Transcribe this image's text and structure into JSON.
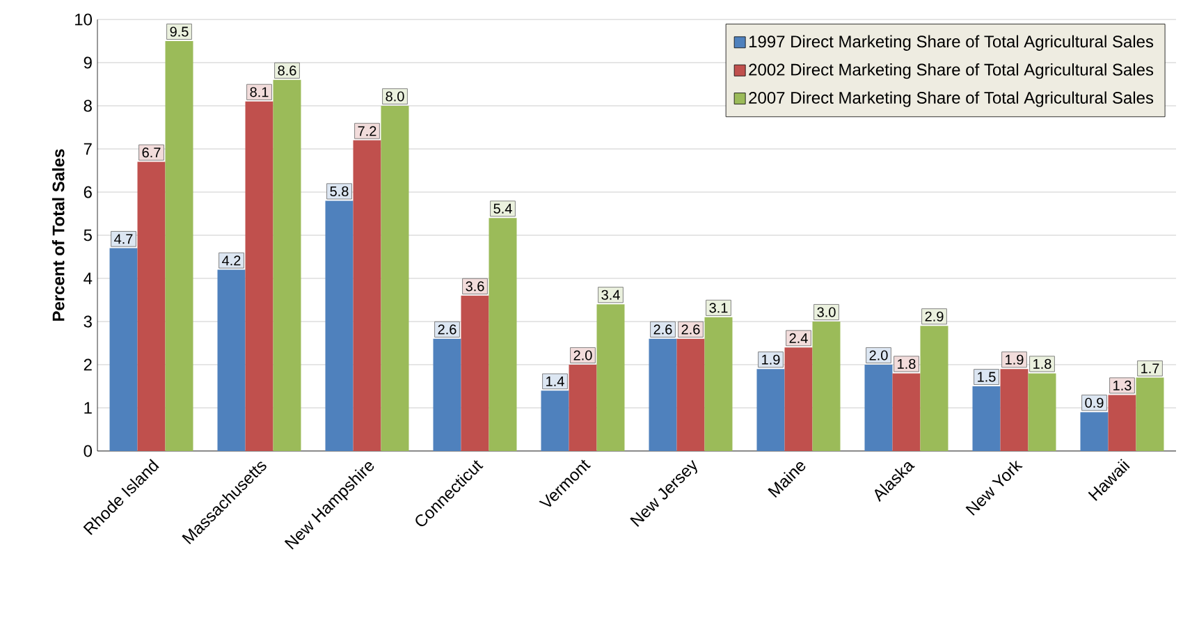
{
  "chart_data": {
    "type": "bar",
    "ylabel": "Percent of Total Sales",
    "categories": [
      "Rhode Island",
      "Massachusetts",
      "New Hampshire",
      "Connecticut",
      "Vermont",
      "New Jersey",
      "Maine",
      "Alaska",
      "New York",
      "Hawaii"
    ],
    "series": [
      {
        "name": "1997 Direct Marketing Share of Total Agricultural Sales",
        "color": "#4f81bd",
        "values": [
          4.7,
          4.2,
          5.8,
          2.6,
          1.4,
          2.6,
          1.9,
          2.0,
          1.5,
          0.9
        ],
        "value_labels": [
          "4.7",
          "4.2",
          "5.8",
          "2.6",
          "1.4",
          "2.6",
          "1.9",
          "2.0",
          "1.5",
          "0.9"
        ]
      },
      {
        "name": "2002 Direct Marketing Share of Total Agricultural Sales",
        "color": "#c0504d",
        "values": [
          6.7,
          8.1,
          7.2,
          3.6,
          2.0,
          2.6,
          2.4,
          1.8,
          1.9,
          1.3
        ],
        "value_labels": [
          "6.7",
          "8.1",
          "7.2",
          "3.6",
          "2.0",
          "2.6",
          "2.4",
          "1.8",
          "1.9",
          "1.3"
        ]
      },
      {
        "name": "2007 Direct Marketing Share of Total Agricultural Sales",
        "color": "#9bbb59",
        "values": [
          9.5,
          8.6,
          8.0,
          5.4,
          3.4,
          3.1,
          3.0,
          2.9,
          1.8,
          1.7
        ],
        "value_labels": [
          "9.5",
          "8.6",
          "8.0",
          "5.4",
          "3.4",
          "3.1",
          "3.0",
          "2.9",
          "1.8",
          "1.7"
        ]
      }
    ],
    "ylim": [
      0,
      10
    ],
    "yticks": [
      0,
      1,
      2,
      3,
      4,
      5,
      6,
      7,
      8,
      9,
      10
    ],
    "grid": "y",
    "legend": "top right"
  }
}
